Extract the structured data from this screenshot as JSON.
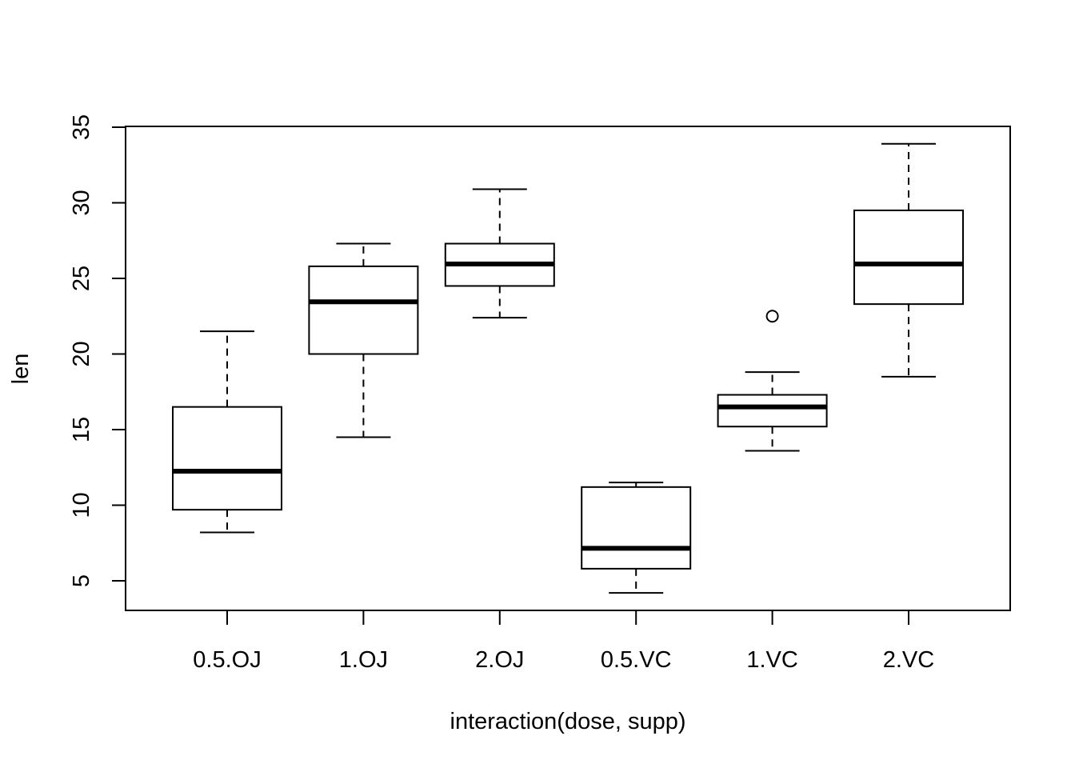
{
  "chart_data": {
    "type": "box",
    "title": "",
    "xlabel": "interaction(dose, supp)",
    "ylabel": "len",
    "ylim": [
      3,
      35
    ],
    "yticks": [
      5,
      10,
      15,
      20,
      25,
      30,
      35
    ],
    "grid": false,
    "categories": [
      "0.5.OJ",
      "1.OJ",
      "2.OJ",
      "0.5.VC",
      "1.VC",
      "2.VC"
    ],
    "boxes": [
      {
        "category": "0.5.OJ",
        "lower_whisker": 8.2,
        "q1": 9.7,
        "median": 12.25,
        "q3": 16.5,
        "upper_whisker": 21.5,
        "outliers": []
      },
      {
        "category": "1.OJ",
        "lower_whisker": 14.5,
        "q1": 20.0,
        "median": 23.45,
        "q3": 25.8,
        "upper_whisker": 27.3,
        "outliers": []
      },
      {
        "category": "2.OJ",
        "lower_whisker": 22.4,
        "q1": 24.5,
        "median": 25.95,
        "q3": 27.3,
        "upper_whisker": 30.9,
        "outliers": []
      },
      {
        "category": "0.5.VC",
        "lower_whisker": 4.2,
        "q1": 5.8,
        "median": 7.15,
        "q3": 11.2,
        "upper_whisker": 11.5,
        "outliers": []
      },
      {
        "category": "1.VC",
        "lower_whisker": 13.6,
        "q1": 15.2,
        "median": 16.5,
        "q3": 17.3,
        "upper_whisker": 18.8,
        "outliers": [
          22.5
        ]
      },
      {
        "category": "2.VC",
        "lower_whisker": 18.5,
        "q1": 23.3,
        "median": 25.95,
        "q3": 29.5,
        "upper_whisker": 33.9,
        "outliers": []
      }
    ],
    "colors": {
      "stroke": "#000000",
      "fill": "#ffffff"
    }
  }
}
